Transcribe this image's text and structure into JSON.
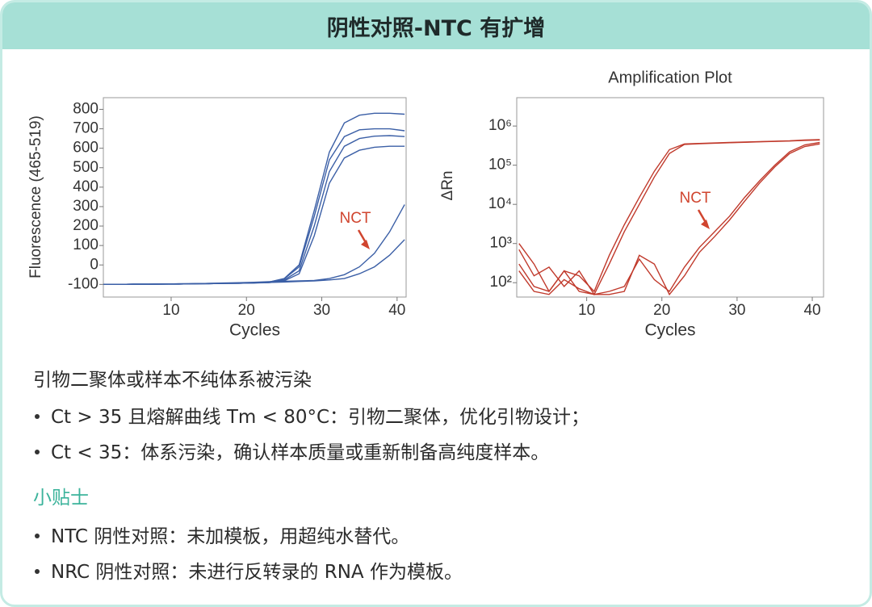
{
  "header": {
    "title": "阴性对照-NTC 有扩增"
  },
  "chart_data": [
    {
      "type": "line",
      "y_label": "Fluorescence (465-519)",
      "x_label": "Cycles",
      "annotation": "NCT",
      "xlim": [
        1,
        41.2
      ],
      "ylim": [
        -165,
        860
      ],
      "xticks": [
        10,
        20,
        30,
        40
      ],
      "yticks": [
        -100,
        0,
        100,
        200,
        300,
        400,
        500,
        600,
        700,
        800
      ],
      "x": [
        1,
        3,
        5,
        7,
        9,
        11,
        13,
        15,
        17,
        19,
        21,
        23,
        25,
        27,
        29,
        31,
        33,
        35,
        37,
        39,
        41
      ],
      "series": [
        {
          "color": "#3b5fa6",
          "values": [
            -100,
            -100,
            -99,
            -99,
            -98,
            -98,
            -97,
            -96,
            -95,
            -94,
            -92,
            -88,
            -70,
            0,
            280,
            580,
            730,
            770,
            780,
            780,
            775
          ]
        },
        {
          "color": "#3b5fa6",
          "values": [
            -100,
            -100,
            -99,
            -99,
            -98,
            -98,
            -97,
            -96,
            -95,
            -94,
            -92,
            -88,
            -72,
            -10,
            250,
            540,
            660,
            695,
            700,
            700,
            690
          ]
        },
        {
          "color": "#3b5fa6",
          "values": [
            -100,
            -100,
            -99,
            -99,
            -98,
            -98,
            -97,
            -96,
            -95,
            -94,
            -93,
            -90,
            -78,
            -30,
            200,
            480,
            610,
            650,
            662,
            665,
            660
          ]
        },
        {
          "color": "#3b5fa6",
          "values": [
            -100,
            -100,
            -99,
            -99,
            -98,
            -98,
            -97,
            -96,
            -95,
            -94,
            -93,
            -91,
            -82,
            -45,
            150,
            420,
            550,
            590,
            605,
            610,
            610
          ]
        },
        {
          "color": "#3b5fa6",
          "values": [
            -100,
            -100,
            -99,
            -99,
            -98,
            -97,
            -96,
            -95,
            -93,
            -91,
            -89,
            -86,
            -84,
            -82,
            -80,
            -70,
            -50,
            -10,
            60,
            170,
            310
          ]
        },
        {
          "color": "#3b5fa6",
          "values": [
            -100,
            -100,
            -99,
            -99,
            -98,
            -97,
            -96,
            -95,
            -94,
            -93,
            -92,
            -90,
            -88,
            -85,
            -82,
            -77,
            -70,
            -45,
            -10,
            50,
            130
          ]
        }
      ]
    },
    {
      "type": "line",
      "title": "Amplification Plot",
      "y_label": "ΔRn",
      "x_label": "Cycles",
      "annotation": "NCT",
      "log_y": true,
      "xlim": [
        0.7,
        41.5
      ],
      "ylim": [
        43,
        5300000
      ],
      "xticks": [
        10,
        20,
        30,
        40
      ],
      "yticks": [
        {
          "value": 100,
          "label": "10²"
        },
        {
          "value": 1000,
          "label": "10³"
        },
        {
          "value": 10000,
          "label": "10⁴"
        },
        {
          "value": 100000,
          "label": "10⁵"
        },
        {
          "value": 1000000,
          "label": "10⁶"
        }
      ],
      "x": [
        1,
        3,
        5,
        7,
        9,
        11,
        13,
        15,
        17,
        19,
        21,
        23,
        25,
        27,
        29,
        31,
        33,
        35,
        37,
        39,
        41
      ],
      "series": [
        {
          "color": "#c0392b",
          "values": [
            1000,
            300,
            60,
            200,
            150,
            60,
            500,
            3000,
            15000,
            70000,
            250000,
            350000,
            360000,
            370000,
            380000,
            390000,
            400000,
            410000,
            420000,
            440000,
            450000
          ]
        },
        {
          "color": "#c0392b",
          "values": [
            700,
            150,
            250,
            80,
            200,
            50,
            300,
            2000,
            10000,
            50000,
            200000,
            340000,
            355000,
            365000,
            375000,
            385000,
            395000,
            405000,
            415000,
            430000,
            440000
          ]
        },
        {
          "color": "#c0392b",
          "values": [
            300,
            80,
            60,
            200,
            60,
            50,
            60,
            80,
            400,
            120,
            60,
            250,
            800,
            2000,
            5000,
            15000,
            40000,
            100000,
            220000,
            330000,
            380000
          ]
        },
        {
          "color": "#c0392b",
          "values": [
            200,
            60,
            50,
            120,
            70,
            50,
            50,
            60,
            500,
            300,
            50,
            150,
            600,
            1500,
            4000,
            12000,
            35000,
            90000,
            200000,
            300000,
            350000
          ]
        }
      ]
    }
  ],
  "diagnosis": {
    "heading": "引物二聚体或样本不纯体系被污染",
    "bullets": [
      "Ct > 35 且熔解曲线 Tm < 80°C：引物二聚体，优化引物设计；",
      "Ct < 35：体系污染，确认样本质量或重新制备高纯度样本。"
    ]
  },
  "tips": {
    "heading": "小贴士",
    "bullets": [
      "NTC 阴性对照：未加模板，用超纯水替代。",
      "NRC 阴性对照：未进行反转录的 RNA 作为模板。"
    ]
  }
}
